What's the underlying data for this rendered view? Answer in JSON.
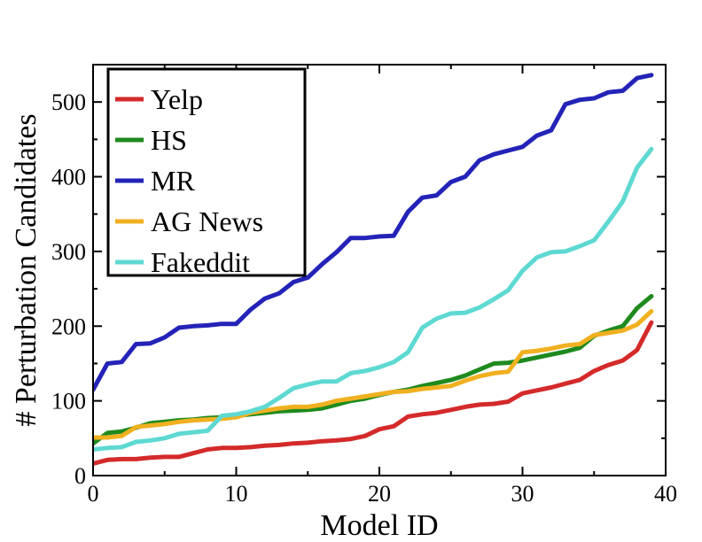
{
  "chart_data": {
    "type": "line",
    "title": "",
    "xlabel": "Model ID",
    "ylabel": "# Perturbation Candidates",
    "xlim": [
      0,
      40
    ],
    "ylim": [
      0,
      550
    ],
    "xticks": [
      0,
      10,
      20,
      30,
      40
    ],
    "yticks": [
      0,
      100,
      200,
      300,
      400,
      500
    ],
    "legend_position": "top-left",
    "x": [
      0,
      1,
      2,
      3,
      4,
      5,
      6,
      7,
      8,
      9,
      10,
      11,
      12,
      13,
      14,
      15,
      16,
      17,
      18,
      19,
      20,
      21,
      22,
      23,
      24,
      25,
      26,
      27,
      28,
      29,
      30,
      31,
      32,
      33,
      34,
      35,
      36,
      37,
      38,
      39
    ],
    "series": [
      {
        "name": "Yelp",
        "color": "#d42a2a",
        "values": [
          16,
          21,
          22,
          22,
          24,
          25,
          25,
          30,
          35,
          37,
          37,
          38,
          40,
          41,
          43,
          44,
          46,
          47,
          49,
          53,
          62,
          66,
          79,
          82,
          84,
          88,
          92,
          95,
          96,
          99,
          110,
          114,
          118,
          123,
          128,
          140,
          148,
          154,
          168,
          205
        ]
      },
      {
        "name": "HS",
        "color": "#1e8a1e",
        "values": [
          43,
          57,
          59,
          64,
          70,
          72,
          74,
          75,
          77,
          78,
          80,
          82,
          84,
          86,
          87,
          88,
          90,
          95,
          100,
          103,
          108,
          112,
          115,
          120,
          124,
          128,
          134,
          142,
          150,
          151,
          154,
          158,
          162,
          166,
          171,
          187,
          194,
          200,
          224,
          240
        ]
      },
      {
        "name": "MR",
        "color": "#2323b8",
        "values": [
          115,
          150,
          152,
          176,
          177,
          185,
          198,
          200,
          201,
          203,
          203,
          222,
          237,
          244,
          259,
          265,
          283,
          299,
          318,
          318,
          320,
          321,
          353,
          372,
          375,
          393,
          400,
          422,
          430,
          435,
          440,
          455,
          462,
          497,
          503,
          505,
          513,
          515,
          532,
          536
        ]
      },
      {
        "name": "AG News",
        "color": "#f0b020",
        "values": [
          51,
          51,
          53,
          65,
          67,
          69,
          72,
          74,
          75,
          76,
          78,
          84,
          87,
          90,
          92,
          92,
          95,
          100,
          103,
          106,
          109,
          112,
          113,
          116,
          118,
          120,
          127,
          133,
          137,
          139,
          165,
          167,
          170,
          174,
          176,
          188,
          191,
          194,
          202,
          220
        ]
      },
      {
        "name": "Fakeddit",
        "color": "#5ed9d2",
        "values": [
          35,
          37,
          38,
          45,
          47,
          50,
          56,
          58,
          60,
          80,
          82,
          86,
          92,
          104,
          117,
          122,
          126,
          126,
          137,
          140,
          145,
          152,
          165,
          198,
          210,
          217,
          218,
          225,
          236,
          248,
          274,
          292,
          299,
          300,
          307,
          315,
          340,
          367,
          412,
          437
        ]
      }
    ]
  }
}
